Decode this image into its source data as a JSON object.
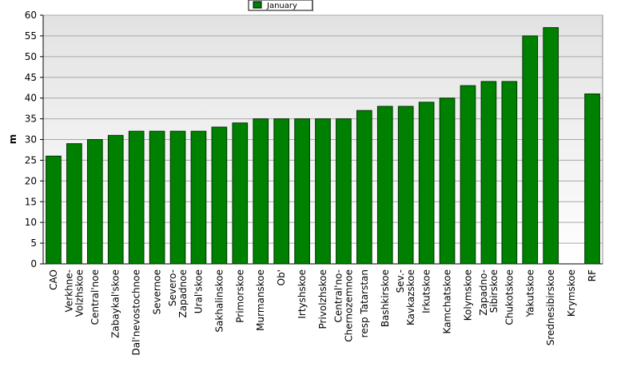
{
  "chart_data": {
    "type": "bar",
    "ylabel": "m",
    "legend": "top",
    "categories": [
      "CAO",
      "Verkhne-\nVolzhskoe",
      "Central'noe",
      "Zabaykal'skoe",
      "Dal'nevostochnoe",
      "Severnoe",
      "Severo-\nZapadnoe",
      "Ural'skoe",
      "Sakhalinskoe",
      "Primorskoe",
      "Murmanskoe",
      "Ob'",
      "Irtyshskoe",
      "Privolzhskoe",
      "Central'no-\nChernozemnoe",
      "resp Tatarstan",
      "Bashkirskoe",
      "Sev.-\nKavkazskoe",
      "Irkutskoe",
      "Kamchatskoe",
      "Kolymskoe",
      "Zapadno-\nSibirskoe",
      "Chukotskoe",
      "Yakutskoe",
      "Srednesibirskoe",
      "Krymskoe",
      "RF"
    ],
    "series": [
      {
        "name": "January",
        "color": "#008000",
        "values": [
          26,
          29,
          30,
          31,
          32,
          32,
          32,
          32,
          33,
          34,
          35,
          35,
          35,
          35,
          35,
          37,
          38,
          38,
          39,
          40,
          43,
          44,
          44,
          55,
          57,
          null,
          41
        ]
      }
    ],
    "ylim": [
      0,
      60
    ],
    "yticks": [
      0,
      5,
      10,
      15,
      20,
      25,
      30,
      35,
      40,
      45,
      50,
      55,
      60
    ],
    "grid": true
  }
}
